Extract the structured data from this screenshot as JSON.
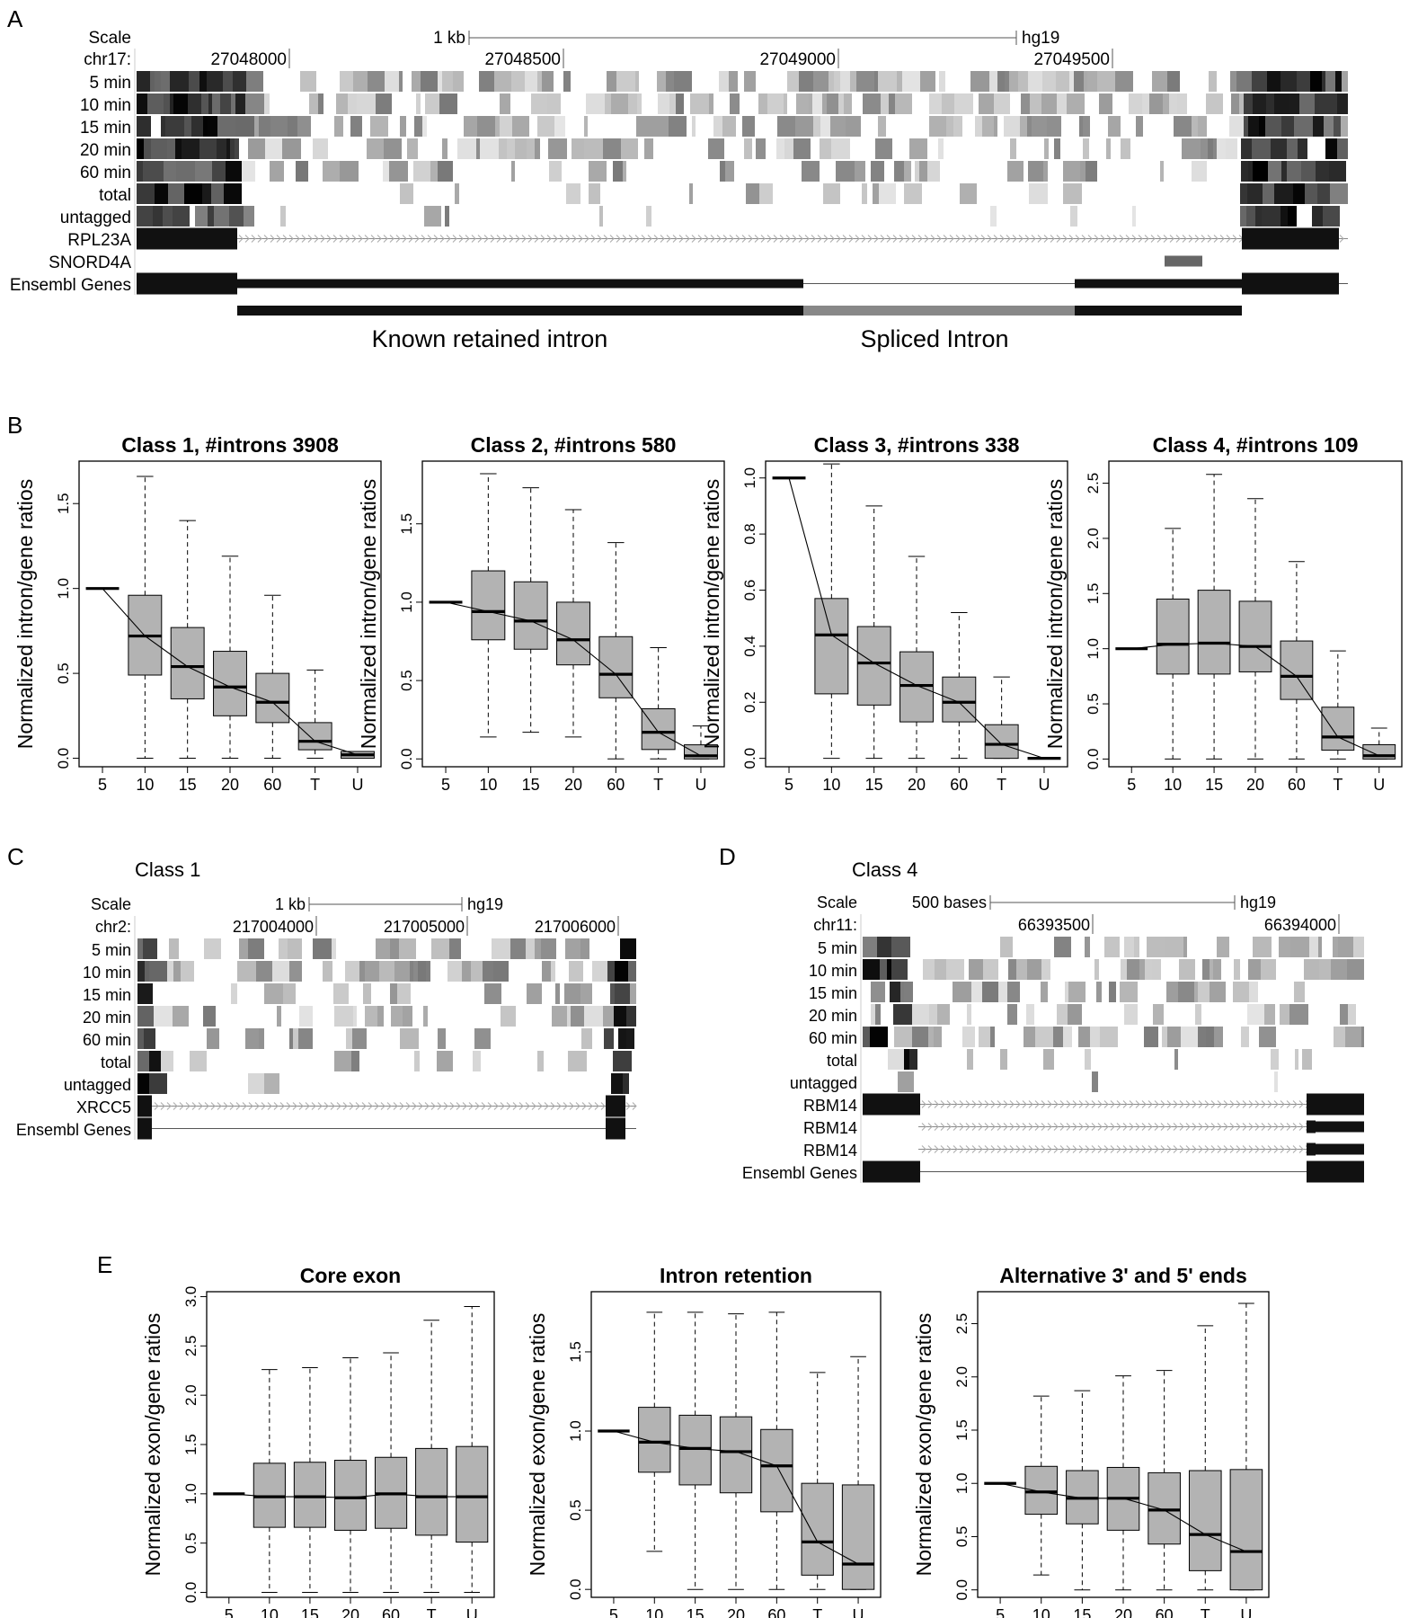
{
  "panel_letters": [
    "A",
    "B",
    "C",
    "D",
    "E"
  ],
  "panel_a": {
    "scale_label": "Scale",
    "scale_value": "1 kb",
    "assembly": "hg19",
    "chrom": "chr17:",
    "ticks": [
      "27048000",
      "27048500",
      "27049000",
      "27049500"
    ],
    "tracks": [
      "5 min",
      "10 min",
      "15 min",
      "20 min",
      "60 min",
      "total",
      "untagged"
    ],
    "genes": [
      "RPL23A",
      "SNORD4A",
      "Ensembl Genes"
    ],
    "intron_labels": [
      "Known retained intron",
      "Spliced Intron"
    ]
  },
  "panel_c": {
    "title": "Class 1",
    "scale_label": "Scale",
    "scale_value": "1 kb",
    "assembly": "hg19",
    "chrom": "chr2:",
    "ticks": [
      "217004000",
      "217005000",
      "217006000"
    ],
    "tracks": [
      "5 min",
      "10 min",
      "15 min",
      "20 min",
      "60 min",
      "total",
      "untagged"
    ],
    "genes": [
      "XRCC5",
      "Ensembl Genes"
    ]
  },
  "panel_d": {
    "title": "Class 4",
    "scale_label": "Scale",
    "scale_value": "500 bases",
    "assembly": "hg19",
    "chrom": "chr11:",
    "ticks": [
      "66393500",
      "66394000"
    ],
    "tracks": [
      "5 min",
      "10 min",
      "15 min",
      "20 min",
      "60 min",
      "total",
      "untagged"
    ],
    "genes": [
      "RBM14",
      "RBM14",
      "RBM14",
      "Ensembl Genes"
    ]
  },
  "chart_data": [
    {
      "type": "box",
      "panel": "B",
      "title": "Class 1, #introns 3908",
      "ylabel": "Normalized intron/gene ratios",
      "categories": [
        "5",
        "10",
        "15",
        "20",
        "60",
        "T",
        "U"
      ],
      "ylim": [
        -0.05,
        1.75
      ],
      "yticks": [
        "0.0",
        "0.5",
        "1.0",
        "1.5"
      ],
      "ytick_values": [
        0,
        0.5,
        1.0,
        1.5
      ],
      "min": [
        1.0,
        0.0,
        0.0,
        0.0,
        0.0,
        0.0,
        0.0
      ],
      "q1": [
        1.0,
        0.49,
        0.35,
        0.25,
        0.21,
        0.05,
        0.0
      ],
      "median": [
        1.0,
        0.72,
        0.54,
        0.42,
        0.33,
        0.1,
        0.02
      ],
      "q3": [
        1.0,
        0.96,
        0.77,
        0.63,
        0.5,
        0.21,
        0.04
      ],
      "max": [
        1.0,
        1.66,
        1.4,
        1.19,
        0.96,
        0.52,
        0.04
      ]
    },
    {
      "type": "box",
      "panel": "B",
      "title": "Class 2, #introns 580",
      "ylabel": "Normalized intron/gene ratios",
      "categories": [
        "5",
        "10",
        "15",
        "20",
        "60",
        "T",
        "U"
      ],
      "ylim": [
        -0.05,
        1.9
      ],
      "yticks": [
        "0.0",
        "0.5",
        "1.0",
        "1.5"
      ],
      "ytick_values": [
        0,
        0.5,
        1.0,
        1.5
      ],
      "min": [
        1.0,
        0.14,
        0.17,
        0.14,
        0.0,
        0.0,
        0.0
      ],
      "q1": [
        1.0,
        0.76,
        0.7,
        0.6,
        0.39,
        0.06,
        0.0
      ],
      "median": [
        1.0,
        0.94,
        0.88,
        0.76,
        0.54,
        0.17,
        0.02
      ],
      "q3": [
        1.0,
        1.2,
        1.13,
        1.0,
        0.78,
        0.32,
        0.09
      ],
      "max": [
        1.0,
        1.82,
        1.73,
        1.59,
        1.38,
        0.71,
        0.21
      ]
    },
    {
      "type": "box",
      "panel": "B",
      "title": "Class 3, #introns 338",
      "ylabel": "Normalized intron/gene ratios",
      "categories": [
        "5",
        "10",
        "15",
        "20",
        "60",
        "T",
        "U"
      ],
      "ylim": [
        -0.03,
        1.06
      ],
      "yticks": [
        "0.0",
        "0.2",
        "0.4",
        "0.6",
        "0.8",
        "1.0"
      ],
      "ytick_values": [
        0,
        0.2,
        0.4,
        0.6,
        0.8,
        1.0
      ],
      "min": [
        1.0,
        0.0,
        0.0,
        0.0,
        0.0,
        0.0,
        0.0
      ],
      "q1": [
        1.0,
        0.23,
        0.19,
        0.13,
        0.13,
        0.0,
        0.0
      ],
      "median": [
        1.0,
        0.44,
        0.34,
        0.26,
        0.2,
        0.05,
        0.0
      ],
      "q3": [
        1.0,
        0.57,
        0.47,
        0.38,
        0.29,
        0.12,
        0.0
      ],
      "max": [
        1.0,
        1.05,
        0.9,
        0.72,
        0.52,
        0.29,
        0.0
      ]
    },
    {
      "type": "box",
      "panel": "B",
      "title": "Class 4, #introns 109",
      "ylabel": "Normalized intron/gene ratios",
      "categories": [
        "5",
        "10",
        "15",
        "20",
        "60",
        "T",
        "U"
      ],
      "ylim": [
        -0.07,
        2.7
      ],
      "yticks": [
        "0.0",
        "0.5",
        "1.0",
        "1.5",
        "2.0",
        "2.5"
      ],
      "ytick_values": [
        0,
        0.5,
        1.0,
        1.5,
        2.0,
        2.5
      ],
      "min": [
        1.0,
        0.0,
        0.0,
        0.0,
        0.0,
        0.0,
        0.0
      ],
      "q1": [
        1.0,
        0.77,
        0.77,
        0.79,
        0.54,
        0.08,
        0.0
      ],
      "median": [
        1.0,
        1.04,
        1.05,
        1.02,
        0.75,
        0.2,
        0.03
      ],
      "q3": [
        1.0,
        1.45,
        1.53,
        1.43,
        1.07,
        0.47,
        0.13
      ],
      "max": [
        1.0,
        2.09,
        2.58,
        2.36,
        1.79,
        0.98,
        0.28
      ]
    },
    {
      "type": "box",
      "panel": "E",
      "title": "Core exon",
      "ylabel": "Normalized exon/gene ratios",
      "categories": [
        "5",
        "10",
        "15",
        "20",
        "60",
        "T",
        "U"
      ],
      "ylim": [
        -0.05,
        3.05
      ],
      "yticks": [
        "0.0",
        "0.5",
        "1.0",
        "1.5",
        "2.0",
        "2.5",
        "3.0"
      ],
      "ytick_values": [
        0,
        0.5,
        1.0,
        1.5,
        2.0,
        2.5,
        3.0
      ],
      "min": [
        1.0,
        0.0,
        0.0,
        0.0,
        0.0,
        0.0,
        0.0
      ],
      "q1": [
        1.0,
        0.66,
        0.66,
        0.63,
        0.65,
        0.58,
        0.51
      ],
      "median": [
        1.0,
        0.97,
        0.97,
        0.96,
        1.0,
        0.97,
        0.97
      ],
      "q3": [
        1.0,
        1.31,
        1.32,
        1.34,
        1.37,
        1.46,
        1.48
      ],
      "max": [
        1.0,
        2.26,
        2.28,
        2.38,
        2.43,
        2.76,
        2.9
      ]
    },
    {
      "type": "box",
      "panel": "E",
      "title": "Intron retention",
      "ylabel": "Normalized exon/gene ratios",
      "categories": [
        "5",
        "10",
        "15",
        "20",
        "60",
        "T",
        "U"
      ],
      "ylim": [
        -0.05,
        1.88
      ],
      "yticks": [
        "0.0",
        "0.5",
        "1.0",
        "1.5"
      ],
      "ytick_values": [
        0,
        0.5,
        1.0,
        1.5
      ],
      "min": [
        1.0,
        0.24,
        0.0,
        0.0,
        0.0,
        0.0,
        0.0
      ],
      "q1": [
        1.0,
        0.74,
        0.66,
        0.61,
        0.49,
        0.09,
        0.0
      ],
      "median": [
        1.0,
        0.93,
        0.89,
        0.87,
        0.78,
        0.3,
        0.16
      ],
      "q3": [
        1.0,
        1.15,
        1.1,
        1.09,
        1.01,
        0.67,
        0.66
      ],
      "max": [
        1.0,
        1.75,
        1.75,
        1.74,
        1.75,
        1.37,
        1.47
      ]
    },
    {
      "type": "box",
      "panel": "E",
      "title": "Alternative 3' and 5' ends",
      "ylabel": "Normalized exon/gene ratios",
      "categories": [
        "5",
        "10",
        "15",
        "20",
        "60",
        "T",
        "U"
      ],
      "ylim": [
        -0.07,
        2.8
      ],
      "yticks": [
        "0.0",
        "0.5",
        "1.0",
        "1.5",
        "2.0",
        "2.5"
      ],
      "ytick_values": [
        0,
        0.5,
        1.0,
        1.5,
        2.0,
        2.5
      ],
      "min": [
        1.0,
        0.14,
        0.0,
        0.0,
        0.0,
        0.0,
        0.0
      ],
      "q1": [
        1.0,
        0.71,
        0.62,
        0.56,
        0.43,
        0.18,
        0.0
      ],
      "median": [
        1.0,
        0.92,
        0.86,
        0.86,
        0.75,
        0.52,
        0.36
      ],
      "q3": [
        1.0,
        1.16,
        1.12,
        1.15,
        1.1,
        1.12,
        1.13
      ],
      "max": [
        1.0,
        1.82,
        1.87,
        2.01,
        2.06,
        2.48,
        2.69
      ]
    }
  ]
}
